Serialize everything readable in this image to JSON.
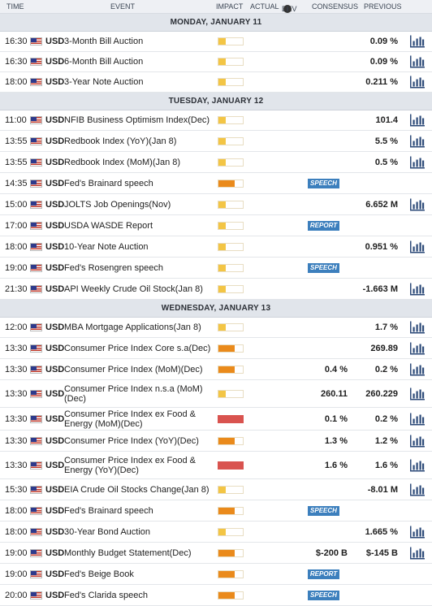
{
  "header": {
    "time": "TIME",
    "event": "EVENT",
    "impact": "IMPACT",
    "actual": "ACTUAL",
    "dev": "DEV",
    "info_icon": "i",
    "consensus": "CONSENSUS",
    "previous": "PREVIOUS"
  },
  "days": [
    {
      "label": "MONDAY, JANUARY 11",
      "rows": [
        {
          "time": "16:30",
          "cur": "USD",
          "event": "3-Month Bill Auction",
          "impact": "low",
          "actual": "",
          "prev": "0.09 %",
          "chart": true
        },
        {
          "time": "16:30",
          "cur": "USD",
          "event": "6-Month Bill Auction",
          "impact": "low",
          "actual": "",
          "prev": "0.09 %",
          "chart": true
        },
        {
          "time": "18:00",
          "cur": "USD",
          "event": "3-Year Note Auction",
          "impact": "low",
          "actual": "",
          "prev": "0.211 %",
          "chart": true
        }
      ]
    },
    {
      "label": "TUESDAY, JANUARY 12",
      "rows": [
        {
          "time": "11:00",
          "cur": "USD",
          "event": "NFIB Business Optimism Index(Dec)",
          "impact": "low",
          "actual": "",
          "prev": "101.4",
          "chart": true
        },
        {
          "time": "13:55",
          "cur": "USD",
          "event": "Redbook Index (YoY)(Jan 8)",
          "impact": "low",
          "actual": "",
          "prev": "5.5 %",
          "chart": true
        },
        {
          "time": "13:55",
          "cur": "USD",
          "event": "Redbook Index (MoM)(Jan 8)",
          "impact": "low",
          "actual": "",
          "prev": "0.5 %",
          "chart": true
        },
        {
          "time": "14:35",
          "cur": "USD",
          "event": "Fed's Brainard speech",
          "impact": "med",
          "badge": "SPEECH",
          "actual": "",
          "prev": "",
          "chart": false
        },
        {
          "time": "15:00",
          "cur": "USD",
          "event": "JOLTS Job Openings(Nov)",
          "impact": "low",
          "actual": "",
          "prev": "6.652 M",
          "chart": true
        },
        {
          "time": "17:00",
          "cur": "USD",
          "event": "USDA WASDE Report",
          "impact": "low",
          "badge": "REPORT",
          "actual": "",
          "prev": "",
          "chart": false
        },
        {
          "time": "18:00",
          "cur": "USD",
          "event": "10-Year Note Auction",
          "impact": "low",
          "actual": "",
          "prev": "0.951 %",
          "chart": true
        },
        {
          "time": "19:00",
          "cur": "USD",
          "event": "Fed's Rosengren speech",
          "impact": "low",
          "badge": "SPEECH",
          "actual": "",
          "prev": "",
          "chart": false
        },
        {
          "time": "21:30",
          "cur": "USD",
          "event": "API Weekly Crude Oil Stock(Jan 8)",
          "impact": "low",
          "actual": "",
          "prev": "-1.663 M",
          "chart": true
        }
      ]
    },
    {
      "label": "WEDNESDAY, JANUARY 13",
      "rows": [
        {
          "time": "12:00",
          "cur": "USD",
          "event": "MBA Mortgage Applications(Jan 8)",
          "impact": "low",
          "actual": "",
          "prev": "1.7 %",
          "chart": true
        },
        {
          "time": "13:30",
          "cur": "USD",
          "event": "Consumer Price Index Core s.a(Dec)",
          "impact": "med",
          "actual": "",
          "prev": "269.89",
          "chart": true
        },
        {
          "time": "13:30",
          "cur": "USD",
          "event": "Consumer Price Index (MoM)(Dec)",
          "impact": "med",
          "actual": "0.4 %",
          "prev": "0.2 %",
          "chart": true
        },
        {
          "time": "13:30",
          "cur": "USD",
          "event": "Consumer Price Index n.s.a (MoM) (Dec)",
          "impact": "low",
          "actual": "260.11",
          "prev": "260.229",
          "chart": true,
          "tall": true
        },
        {
          "time": "13:30",
          "cur": "USD",
          "event": "Consumer Price Index ex Food & Energy (MoM)(Dec)",
          "impact": "high",
          "actual": "0.1 %",
          "prev": "0.2 %",
          "chart": true,
          "tall": true
        },
        {
          "time": "13:30",
          "cur": "USD",
          "event": "Consumer Price Index (YoY)(Dec)",
          "impact": "med",
          "actual": "1.3 %",
          "prev": "1.2 %",
          "chart": true
        },
        {
          "time": "13:30",
          "cur": "USD",
          "event": "Consumer Price Index ex Food & Energy (YoY)(Dec)",
          "impact": "high",
          "actual": "1.6 %",
          "prev": "1.6 %",
          "chart": true,
          "tall": true
        },
        {
          "time": "15:30",
          "cur": "USD",
          "event": "EIA Crude Oil Stocks Change(Jan 8)",
          "impact": "low",
          "actual": "",
          "prev": "-8.01 M",
          "chart": true
        },
        {
          "time": "18:00",
          "cur": "USD",
          "event": "Fed's Brainard speech",
          "impact": "med",
          "badge": "SPEECH",
          "actual": "",
          "prev": "",
          "chart": false
        },
        {
          "time": "18:00",
          "cur": "USD",
          "event": "30-Year Bond Auction",
          "impact": "low",
          "actual": "",
          "prev": "1.665 %",
          "chart": true
        },
        {
          "time": "19:00",
          "cur": "USD",
          "event": "Monthly Budget Statement(Dec)",
          "impact": "med",
          "actual": "$-200 B",
          "prev": "$-145 B",
          "chart": true
        },
        {
          "time": "19:00",
          "cur": "USD",
          "event": "Fed's Beige Book",
          "impact": "med",
          "badge": "REPORT",
          "actual": "",
          "prev": "",
          "chart": false
        },
        {
          "time": "20:00",
          "cur": "USD",
          "event": "Fed's Clarida speech",
          "impact": "med",
          "badge": "SPEECH",
          "actual": "",
          "prev": "",
          "chart": false
        }
      ]
    }
  ],
  "colors": {
    "badge": "#3c7fbd",
    "impact_low": "#f3c545",
    "impact_med": "#ea8a1b",
    "impact_high": "#d9534f",
    "chart_icon": "#2c4a78"
  },
  "icons": {
    "flag": "us-flag-icon",
    "chart": "bar-chart-icon",
    "info": "info-icon"
  }
}
